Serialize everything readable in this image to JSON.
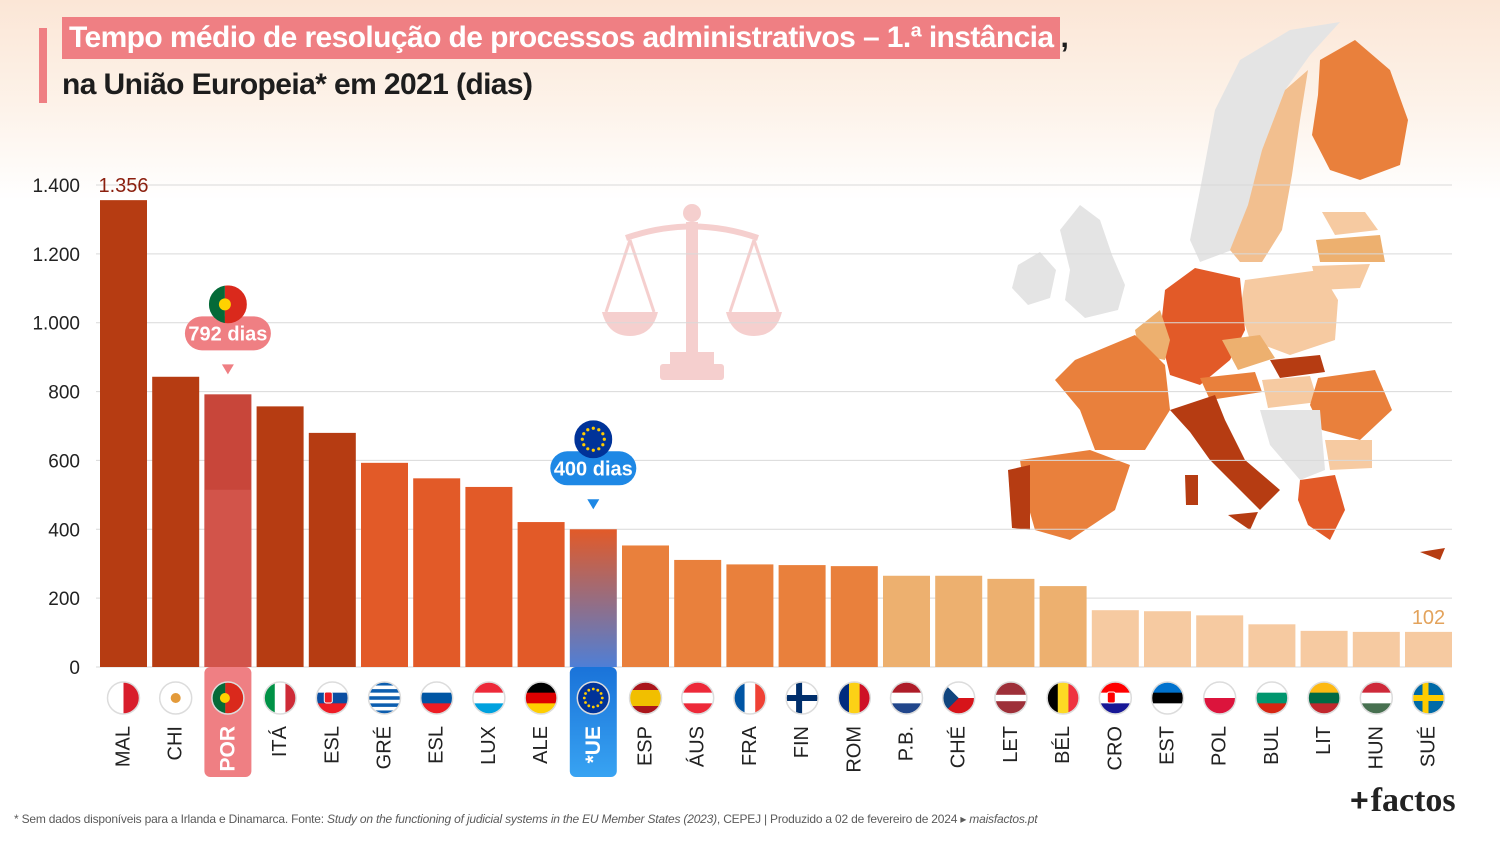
{
  "title": {
    "highlight": "Tempo médio de resolução de processos administrativos – 1.ª instância",
    "tail": ",",
    "line2": "na União Europeia* em 2021 (dias)"
  },
  "footnote": {
    "prefix": "* Sem dados disponíveis para a Irlanda e Dinamarca. Fonte: ",
    "source_italic": "Study on the functioning of judicial systems in the EU Member States (2023)",
    "suffix": ", CEPEJ  |  Produzido a 02 de fevereiro de 2024 ▸ ",
    "site": "maisfactos.pt"
  },
  "brand": {
    "plus": "+",
    "name": "factos"
  },
  "colors": {
    "dark": "#b63c12",
    "mid": "#e25a28",
    "orange": "#e9803c",
    "light": "#edb06f",
    "pale": "#f6caa1",
    "portugal_highlight": "#ef7f83",
    "eu_highlight": "#1e88e5",
    "grid": "#d9d9d9",
    "max_label": "#8b1f0e",
    "min_label": "#e3a35c"
  },
  "chart_data": {
    "type": "bar",
    "ylim": [
      0,
      1400
    ],
    "yticks": [
      0,
      200,
      400,
      600,
      800,
      1000,
      1200,
      1400
    ],
    "ytick_labels": [
      "0",
      "200",
      "400",
      "600",
      "800",
      "1.000",
      "1.200",
      "1.400"
    ],
    "grid": true,
    "categories": [
      "MAL",
      "CHI",
      "POR",
      "ITÁ",
      "ESL",
      "GRÉ",
      "ESL",
      "LUX",
      "ALE",
      "*UE",
      "ESP",
      "ÁUS",
      "FRA",
      "FIN",
      "ROM",
      "P.B.",
      "CHÉ",
      "LET",
      "BÉL",
      "CRO",
      "EST",
      "POL",
      "BUL",
      "LIT",
      "HUN",
      "SUÉ"
    ],
    "values": [
      1356,
      843,
      792,
      757,
      680,
      593,
      548,
      523,
      421,
      400,
      353,
      311,
      298,
      296,
      293,
      265,
      265,
      256,
      235,
      165,
      162,
      150,
      124,
      105,
      102,
      102
    ],
    "tiers": [
      "dark",
      "dark",
      "dark",
      "dark",
      "dark",
      "mid",
      "mid",
      "mid",
      "mid",
      "eu",
      "orange",
      "orange",
      "orange",
      "orange",
      "orange",
      "light",
      "light",
      "light",
      "light",
      "pale",
      "pale",
      "pale",
      "pale",
      "pale",
      "pale",
      "pale"
    ],
    "flags": [
      "malta",
      "cyprus",
      "portugal",
      "italy",
      "slovakia",
      "greece",
      "slovenia",
      "luxembourg",
      "germany",
      "eu",
      "spain",
      "austria",
      "france",
      "finland",
      "romania",
      "netherlands",
      "czechia",
      "latvia",
      "belgium",
      "croatia",
      "estonia",
      "poland",
      "bulgaria",
      "lithuania",
      "hungary",
      "sweden"
    ],
    "annotations": {
      "max_label": "1.356",
      "min_label": "102",
      "portugal_callout": "792 dias",
      "eu_callout": "400 dias"
    }
  }
}
